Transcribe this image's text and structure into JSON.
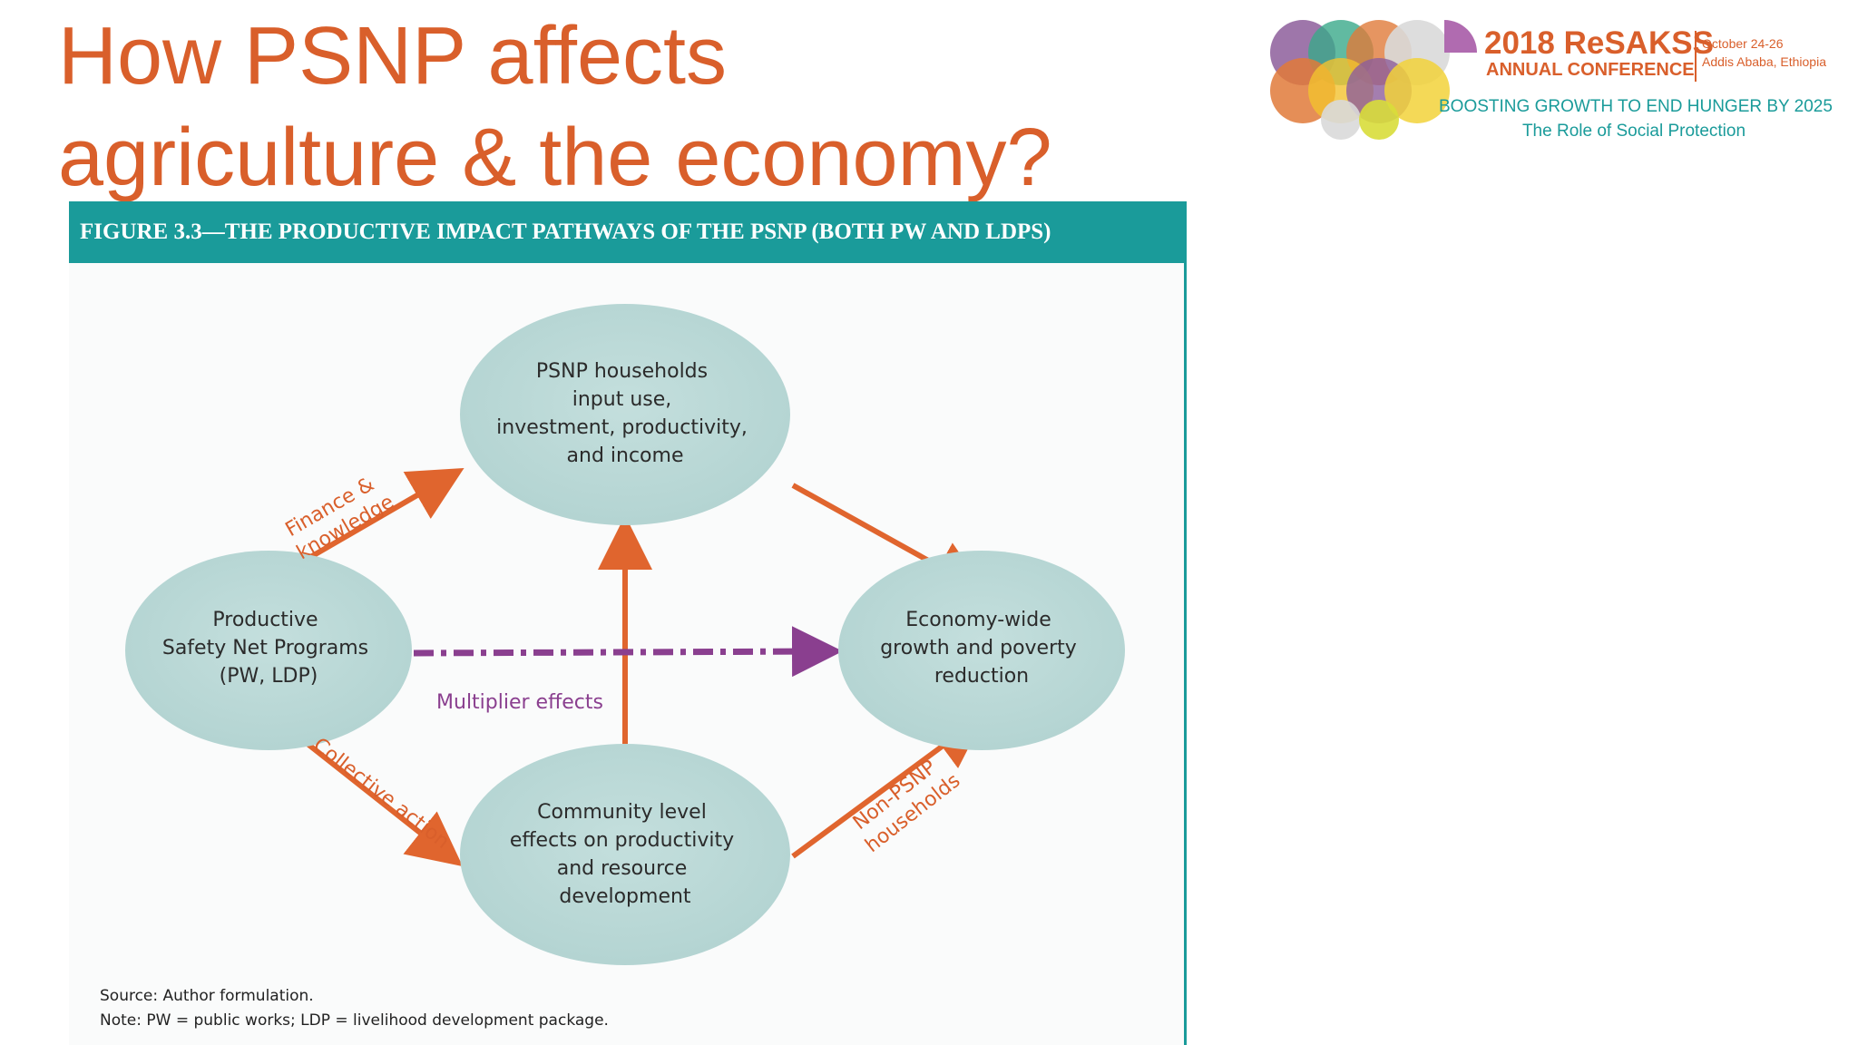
{
  "slide": {
    "title_line1": "How PSNP affects",
    "title_line2": "agriculture & the economy?"
  },
  "logo": {
    "year_name": "2018 ReSAKSS",
    "annual": "ANNUAL CONFERENCE",
    "dates": "October 24-26",
    "location": "Addis Ababa, Ethiopia",
    "tagline": "BOOSTING GROWTH TO END HUNGER BY 2025",
    "subtagline": "The Role of Social Protection"
  },
  "figure": {
    "header": "FIGURE 3.3—THE PRODUCTIVE IMPACT PATHWAYS OF THE PSNP (BOTH PW AND LDPS)",
    "nodes": {
      "psnp_households": [
        "PSNP households",
        "input use,",
        "investment, productivity,",
        "and income"
      ],
      "productive_safety_net": [
        "Productive",
        "Safety Net Programs",
        "(PW, LDP)"
      ],
      "economy_wide": [
        "Economy-wide",
        "growth and poverty",
        "reduction"
      ],
      "community_level": [
        "Community level",
        "effects on productivity",
        "and resource",
        "development"
      ]
    },
    "edges": {
      "finance_knowledge": [
        "Finance &",
        "knowledge"
      ],
      "collective_action": "Collective action",
      "non_psnp": [
        "Non-PSNP",
        "households"
      ],
      "multiplier": "Multiplier effects"
    },
    "source": "Source: Author formulation.",
    "note": "Note: PW = public works; LDP = livelihood development package."
  },
  "colors": {
    "title": "#d95f2b",
    "teal": "#1a9b9a",
    "node_fill": "#b9d8d6",
    "arrow": "#e0652e",
    "multiplier": "#8a3f8f"
  }
}
